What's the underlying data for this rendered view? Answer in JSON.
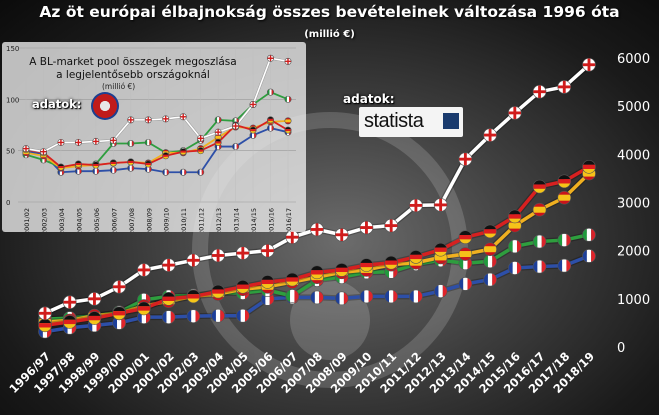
{
  "title": "Az öt európai élbajnokság összes bevételeinek változása 1996 óta",
  "subtitle": "(millió €)",
  "source_label_main": "adatok:",
  "source_label_inset": "adatok:",
  "statista_logo": "statista",
  "uefa_logo_text": "UEFA",
  "inset_title": "A BL-market pool összegek megoszlása a legjelentősebb országoknál",
  "inset_subtitle": "(millió €)",
  "colors": {
    "england": "#ffffff",
    "germany": "#d72020",
    "spain": "#f0b020",
    "italy": "#2e9e3e",
    "france": "#2d4fa8"
  },
  "chart_data": [
    {
      "type": "line",
      "title": "Az öt európai élbajnokság összes bevételeinek változása 1996 óta",
      "subtitle": "(millió €)",
      "categories": [
        "1996/97",
        "1997/98",
        "1998/99",
        "1999/00",
        "2000/01",
        "2001/02",
        "2002/03",
        "2003/04",
        "2004/05",
        "2005/06",
        "2006/07",
        "2007/08",
        "2008/09",
        "2009/10",
        "2010/11",
        "2011/12",
        "2012/13",
        "2013/14",
        "2014/15",
        "2015/16",
        "2016/17",
        "2017/18",
        "2018/19"
      ],
      "ylim": [
        0,
        6000
      ],
      "yticks": [
        0,
        1000,
        2000,
        3000,
        4000,
        5000,
        6000
      ],
      "y_axis_side": "right",
      "grid": false,
      "legend": "flags on markers",
      "series": [
        {
          "flag": "england",
          "values": [
            700,
            930,
            1000,
            1250,
            1600,
            1700,
            1800,
            1900,
            1950,
            2000,
            2280,
            2440,
            2330,
            2480,
            2520,
            2940,
            2950,
            3900,
            4400,
            4860,
            5300,
            5400,
            5860
          ]
        },
        {
          "flag": "germany",
          "values": [
            450,
            520,
            600,
            700,
            800,
            1000,
            1050,
            1150,
            1250,
            1350,
            1400,
            1550,
            1600,
            1700,
            1750,
            1870,
            2020,
            2280,
            2400,
            2710,
            3330,
            3440,
            3740
          ]
        },
        {
          "flag": "spain",
          "values": [
            520,
            550,
            650,
            700,
            850,
            950,
            1050,
            1100,
            1200,
            1250,
            1350,
            1450,
            1550,
            1600,
            1710,
            1750,
            1860,
            1930,
            2030,
            2520,
            2850,
            3100,
            3600
          ]
        },
        {
          "flag": "italy",
          "values": [
            580,
            600,
            650,
            720,
            980,
            1050,
            1070,
            1130,
            1120,
            1180,
            1060,
            1390,
            1450,
            1550,
            1560,
            1720,
            1800,
            1740,
            1780,
            2090,
            2190,
            2220,
            2330
          ]
        },
        {
          "flag": "france",
          "values": [
            320,
            400,
            450,
            500,
            620,
            620,
            640,
            650,
            650,
            1000,
            1030,
            1030,
            1010,
            1050,
            1050,
            1050,
            1160,
            1310,
            1400,
            1640,
            1670,
            1690,
            1890
          ]
        }
      ]
    },
    {
      "type": "line",
      "title": "A BL-market pool összegek megoszlása a legjelentősebb országoknál",
      "subtitle": "(millió €)",
      "categories": [
        "2001/02",
        "2002/03",
        "2003/04",
        "2004/05",
        "2005/06",
        "2006/07",
        "2007/08",
        "2008/09",
        "2009/10",
        "2010/11",
        "2011/12",
        "2012/13",
        "2013/14",
        "2014/15",
        "2015/16",
        "2016/17"
      ],
      "ylim": [
        0,
        150
      ],
      "yticks": [
        0,
        50,
        100,
        150
      ],
      "grid": true,
      "legend": "flags on markers",
      "series": [
        {
          "flag": "england",
          "values": [
            52,
            49,
            58,
            58,
            59,
            60,
            80,
            80,
            81,
            83,
            62,
            68,
            74,
            95,
            140,
            137
          ]
        },
        {
          "flag": "germany",
          "values": [
            51,
            48,
            34,
            37,
            36,
            38,
            39,
            37,
            45,
            49,
            50,
            58,
            75,
            70,
            80,
            70
          ]
        },
        {
          "flag": "spain",
          "values": [
            48,
            45,
            33,
            35,
            36,
            38,
            39,
            38,
            48,
            48,
            52,
            63,
            73,
            72,
            78,
            79
          ]
        },
        {
          "flag": "italy",
          "values": [
            46,
            41,
            34,
            35,
            37,
            57,
            57,
            58,
            48,
            50,
            60,
            80,
            79,
            95,
            107,
            100
          ]
        },
        {
          "flag": "france",
          "values": [
            49,
            47,
            29,
            30,
            30,
            31,
            33,
            32,
            29,
            29,
            29,
            54,
            54,
            65,
            72,
            68
          ]
        }
      ]
    }
  ]
}
